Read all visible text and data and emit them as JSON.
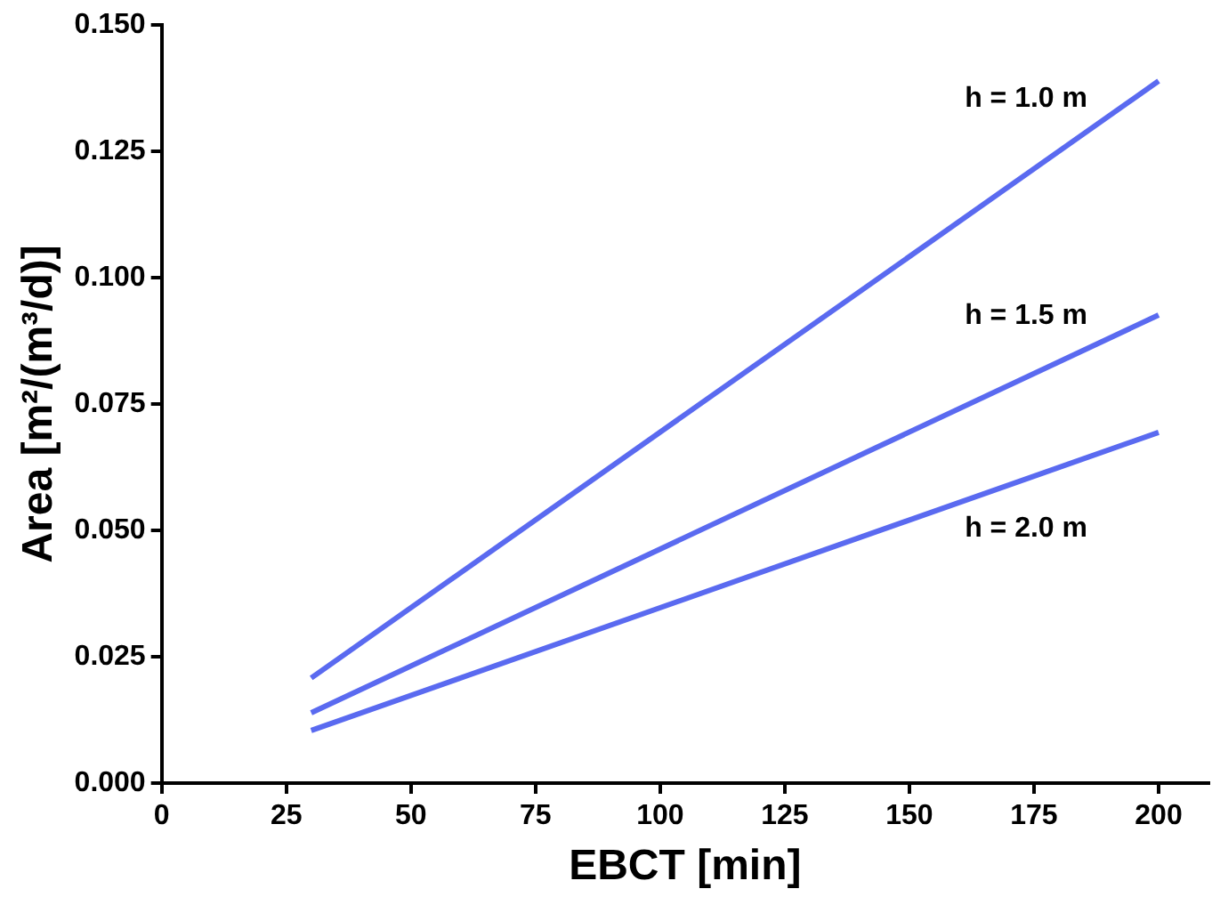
{
  "chart_data": {
    "type": "line",
    "xlabel": "EBCT [min]",
    "ylabel": "Area [m²/(m³/d)]",
    "x": [
      30,
      200
    ],
    "series": [
      {
        "name": "h = 1.0 m",
        "color": "#5a6af0",
        "values": [
          0.0208,
          0.1389
        ]
      },
      {
        "name": "h = 1.5 m",
        "color": "#5a6af0",
        "values": [
          0.0139,
          0.0926
        ]
      },
      {
        "name": "h = 2.0 m",
        "color": "#5a6af0",
        "values": [
          0.0104,
          0.0694
        ]
      }
    ],
    "xlim": [
      0,
      210
    ],
    "xticks": [
      0,
      25,
      50,
      75,
      100,
      125,
      150,
      175,
      200
    ],
    "ylim": [
      0,
      0.15
    ],
    "yticks": [
      {
        "value": 0,
        "label": "0.000"
      },
      {
        "value": 0.025,
        "label": "0.025"
      },
      {
        "value": 0.05,
        "label": "0.050"
      },
      {
        "value": 0.075,
        "label": "0.075"
      },
      {
        "value": 0.1,
        "label": "0.100"
      },
      {
        "value": 0.125,
        "label": "0.125"
      },
      {
        "value": 0.15,
        "label": "0.150"
      }
    ],
    "grid": false,
    "legend": false,
    "marker": "none",
    "line_style": "solid"
  }
}
